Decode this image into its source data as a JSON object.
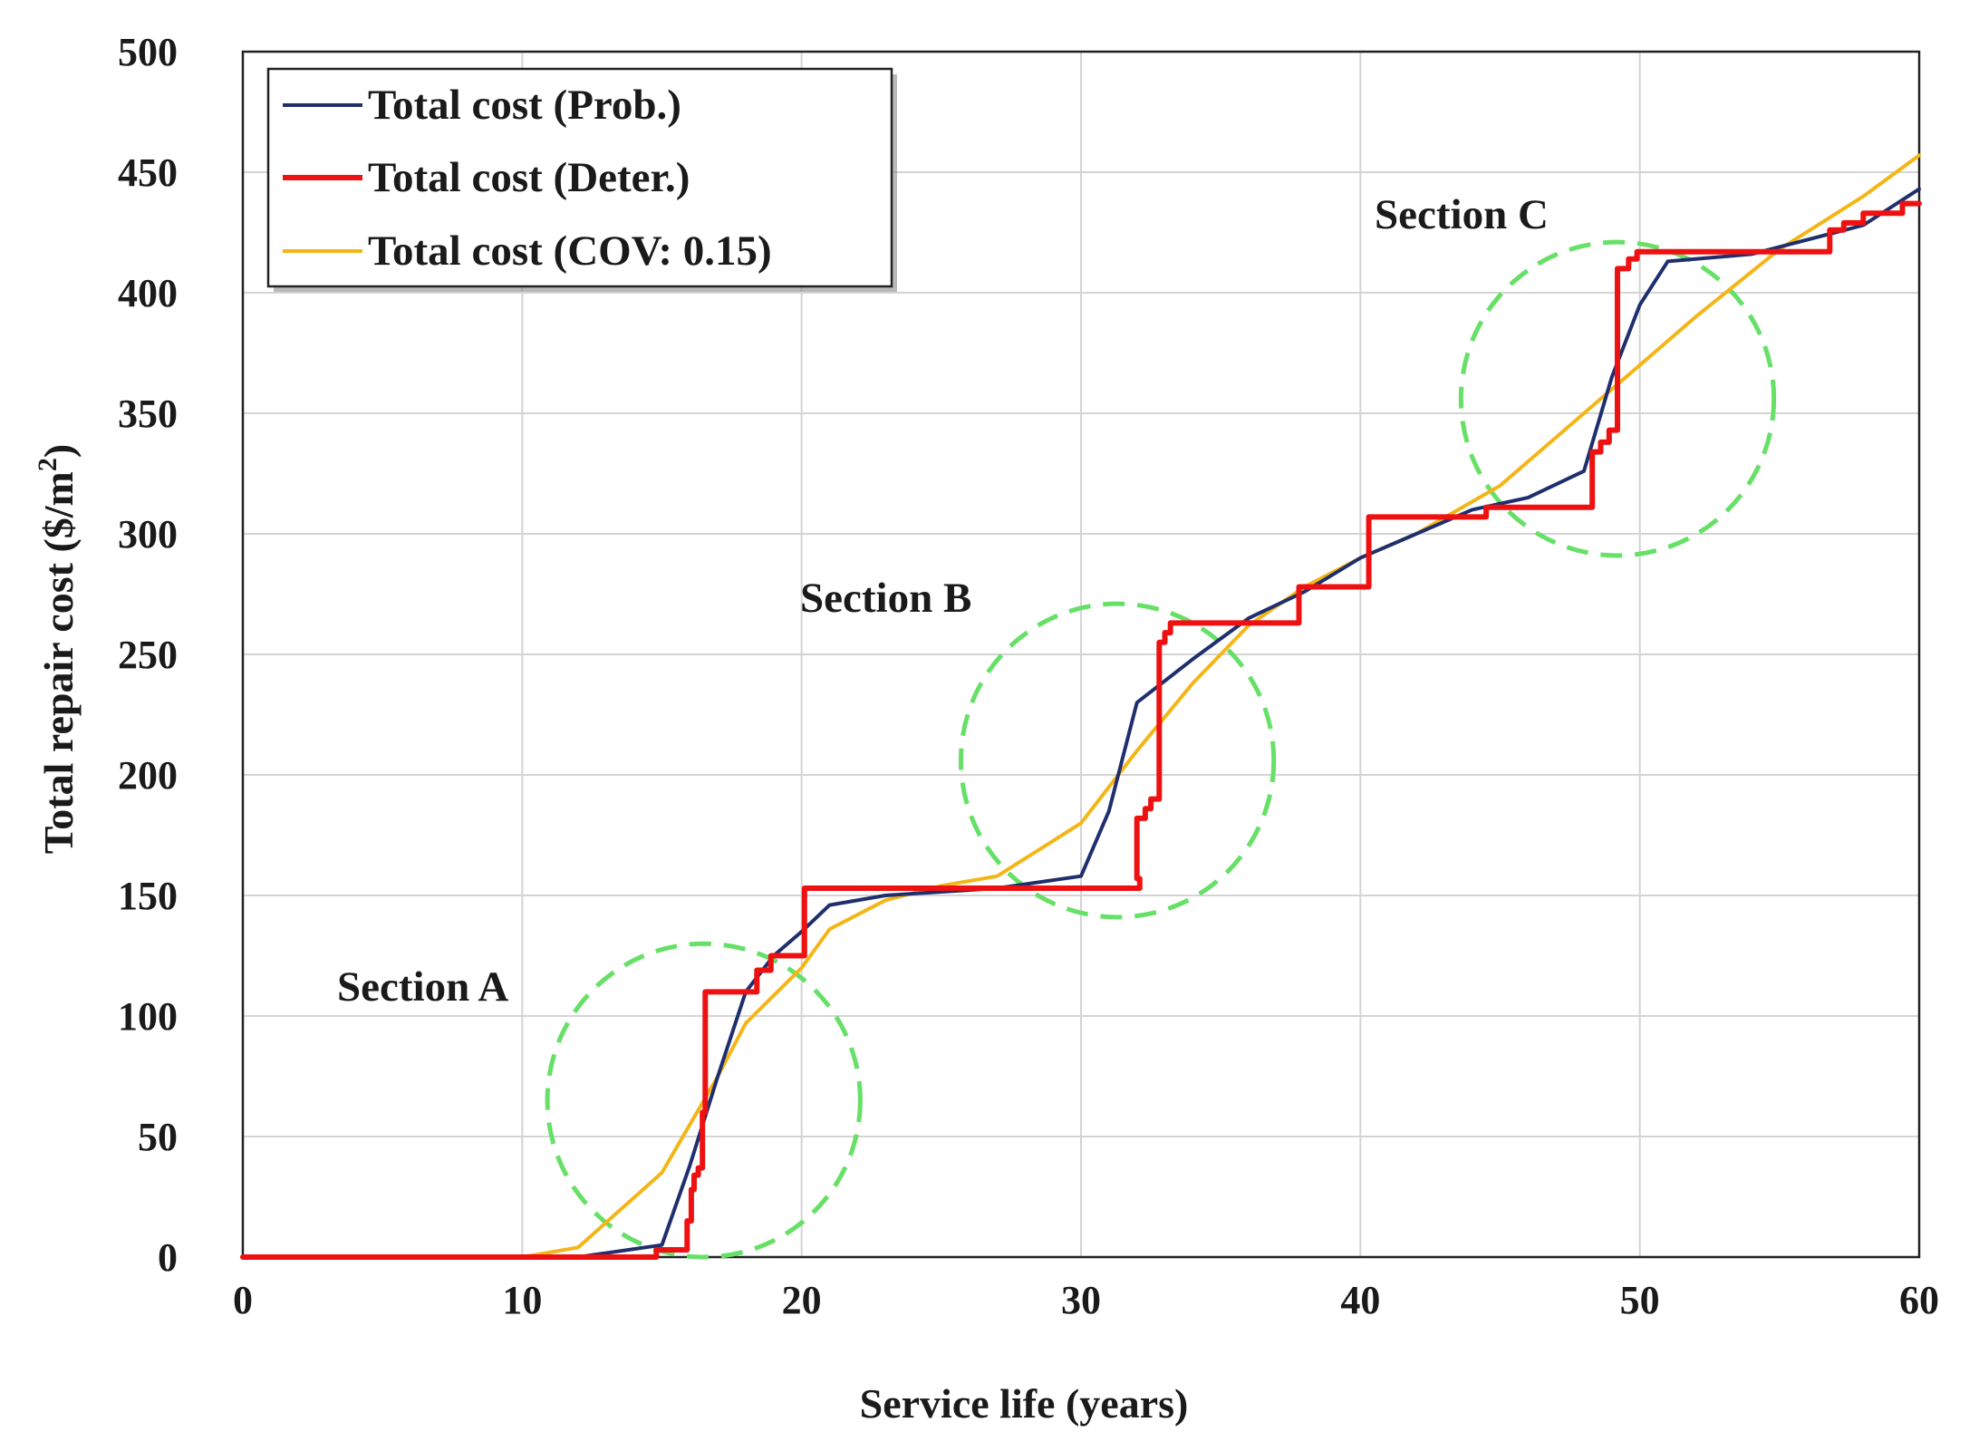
{
  "chart_data": {
    "type": "line",
    "title": "",
    "xlabel": "Service life (years)",
    "ylabel_main": "Total repair cost ($/m",
    "ylabel_sup": "2",
    "ylabel_end": ")",
    "xlim": [
      0,
      60
    ],
    "ylim": [
      0,
      500
    ],
    "xticks": [
      0,
      10,
      20,
      30,
      40,
      50,
      60
    ],
    "yticks": [
      0,
      50,
      100,
      150,
      200,
      250,
      300,
      350,
      400,
      450,
      500
    ],
    "xtick_labels": [
      "0",
      "10",
      "20",
      "30",
      "40",
      "50",
      "60"
    ],
    "ytick_labels": [
      "0",
      "50",
      "100",
      "150",
      "200",
      "250",
      "300",
      "350",
      "400",
      "450",
      "500"
    ],
    "grid": true,
    "legend_position": "top-left",
    "series": [
      {
        "name": "Total cost (Prob.)",
        "color": "#1f2f6e",
        "points": [
          [
            0,
            0
          ],
          [
            10,
            0
          ],
          [
            12,
            0
          ],
          [
            15,
            5
          ],
          [
            16,
            38
          ],
          [
            17,
            75
          ],
          [
            18,
            110
          ],
          [
            19,
            125
          ],
          [
            20,
            135
          ],
          [
            21,
            146
          ],
          [
            23,
            150
          ],
          [
            27,
            153
          ],
          [
            30,
            158
          ],
          [
            31,
            185
          ],
          [
            32,
            230
          ],
          [
            34,
            248
          ],
          [
            36,
            265
          ],
          [
            38,
            276
          ],
          [
            40,
            290
          ],
          [
            42,
            300
          ],
          [
            44,
            310
          ],
          [
            46,
            315
          ],
          [
            48,
            326
          ],
          [
            49,
            365
          ],
          [
            50,
            395
          ],
          [
            51,
            413
          ],
          [
            54,
            416
          ],
          [
            58,
            428
          ],
          [
            60,
            443
          ]
        ]
      },
      {
        "name": "Total cost (Deter.)",
        "color": "#ee1111",
        "points": [
          [
            0,
            0
          ],
          [
            14.8,
            0
          ],
          [
            14.8,
            3
          ],
          [
            15.9,
            3
          ],
          [
            15.9,
            15
          ],
          [
            16.05,
            15
          ],
          [
            16.05,
            28
          ],
          [
            16.15,
            28
          ],
          [
            16.15,
            34
          ],
          [
            16.3,
            34
          ],
          [
            16.3,
            37
          ],
          [
            16.45,
            37
          ],
          [
            16.45,
            60
          ],
          [
            16.55,
            60
          ],
          [
            16.55,
            110
          ],
          [
            18.4,
            110
          ],
          [
            18.4,
            119
          ],
          [
            18.9,
            119
          ],
          [
            18.9,
            125
          ],
          [
            20.1,
            125
          ],
          [
            20.1,
            153
          ],
          [
            32.1,
            153
          ],
          [
            32.1,
            157
          ],
          [
            32,
            157
          ],
          [
            32,
            182
          ],
          [
            32.3,
            182
          ],
          [
            32.3,
            186
          ],
          [
            32.5,
            186
          ],
          [
            32.5,
            190
          ],
          [
            32.8,
            190
          ],
          [
            32.8,
            255
          ],
          [
            33,
            255
          ],
          [
            33,
            259
          ],
          [
            33.2,
            259
          ],
          [
            33.2,
            263
          ],
          [
            37.8,
            263
          ],
          [
            37.8,
            278
          ],
          [
            40.3,
            278
          ],
          [
            40.3,
            307
          ],
          [
            44.5,
            307
          ],
          [
            44.5,
            311
          ],
          [
            48.3,
            311
          ],
          [
            48.3,
            334
          ],
          [
            48.6,
            334
          ],
          [
            48.6,
            338
          ],
          [
            48.9,
            338
          ],
          [
            48.9,
            343
          ],
          [
            49.2,
            343
          ],
          [
            49.2,
            410
          ],
          [
            49.6,
            410
          ],
          [
            49.6,
            414
          ],
          [
            49.9,
            414
          ],
          [
            49.9,
            417
          ],
          [
            56.8,
            417
          ],
          [
            56.8,
            426
          ],
          [
            57.3,
            426
          ],
          [
            57.3,
            429
          ],
          [
            58,
            429
          ],
          [
            58,
            433
          ],
          [
            59.4,
            433
          ],
          [
            59.4,
            437
          ],
          [
            60,
            437
          ]
        ]
      },
      {
        "name": "Total cost (COV: 0.15)",
        "color": "#f4b616",
        "points": [
          [
            0,
            0
          ],
          [
            10,
            0
          ],
          [
            12,
            4
          ],
          [
            15,
            35
          ],
          [
            17,
            75
          ],
          [
            18,
            97
          ],
          [
            20,
            120
          ],
          [
            21,
            136
          ],
          [
            23,
            148
          ],
          [
            25,
            154
          ],
          [
            27,
            158
          ],
          [
            30,
            180
          ],
          [
            32,
            210
          ],
          [
            34,
            238
          ],
          [
            36,
            262
          ],
          [
            38,
            278
          ],
          [
            40,
            290
          ],
          [
            42,
            300
          ],
          [
            45,
            320
          ],
          [
            47,
            340
          ],
          [
            50,
            370
          ],
          [
            52,
            390
          ],
          [
            55,
            418
          ],
          [
            58,
            440
          ],
          [
            60,
            457
          ]
        ]
      }
    ],
    "annotations": [
      {
        "label": "Section A",
        "center": [
          16.5,
          65
        ],
        "radius_x": 5.6,
        "radius_y": 65
      },
      {
        "label": "Section B",
        "center": [
          31.3,
          206
        ],
        "radius_x": 5.6,
        "radius_y": 65
      },
      {
        "label": "Section C",
        "center": [
          49.2,
          356
        ],
        "radius_x": 5.6,
        "radius_y": 65
      }
    ],
    "annotation_color": "#66e066"
  }
}
